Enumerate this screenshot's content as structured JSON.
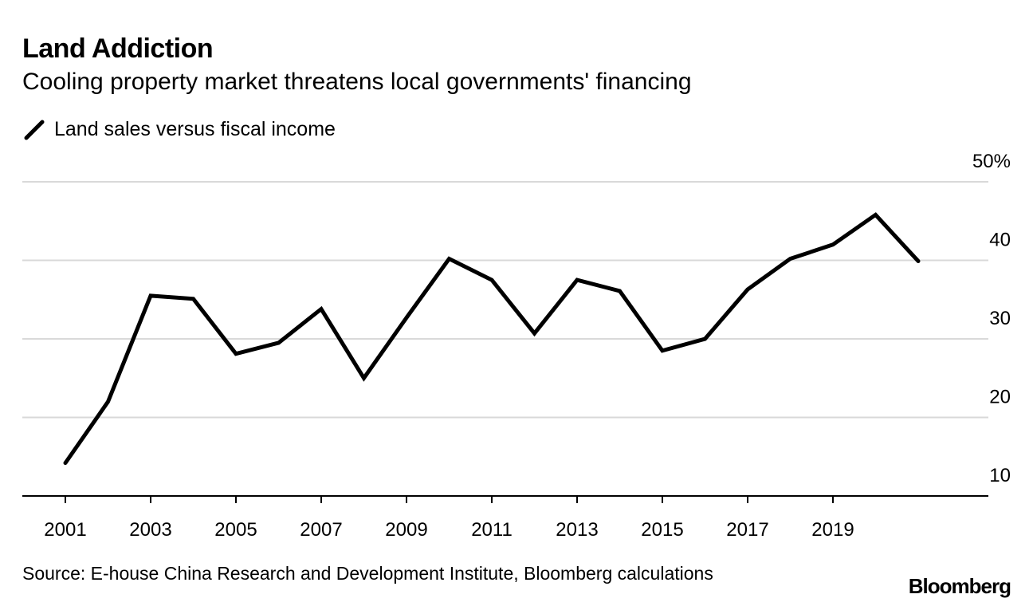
{
  "chart_data": {
    "type": "line",
    "title": "Land Addiction",
    "subtitle": "Cooling property market threatens local governments' financing",
    "legend": [
      "Land sales versus fiscal income"
    ],
    "legend_placement": "top-left",
    "x": [
      2001,
      2002,
      2003,
      2004,
      2005,
      2006,
      2007,
      2008,
      2009,
      2010,
      2011,
      2012,
      2013,
      2014,
      2015,
      2016,
      2017,
      2018,
      2019,
      2020,
      2021
    ],
    "series": [
      {
        "name": "Land sales versus fiscal income",
        "values": [
          14.2,
          22.0,
          35.5,
          35.1,
          28.1,
          29.5,
          33.8,
          25.0,
          32.7,
          40.2,
          37.5,
          30.7,
          37.5,
          36.1,
          28.5,
          30.0,
          36.3,
          40.2,
          42.0,
          45.8,
          39.9
        ]
      }
    ],
    "xticks": [
      "2001",
      "2003",
      "2005",
      "2007",
      "2009",
      "2011",
      "2013",
      "2015",
      "2017",
      "2019"
    ],
    "yticks": [
      "10",
      "20",
      "30",
      "40",
      "50%"
    ],
    "ylim": [
      10,
      50
    ],
    "xlabel": "",
    "ylabel": "",
    "grid": true,
    "source": "Source: E-house China Research and Development Institute, Bloomberg calculations",
    "brand": "Bloomberg",
    "colors": {
      "line": "#000000",
      "grid": "#d9d9d9"
    }
  }
}
